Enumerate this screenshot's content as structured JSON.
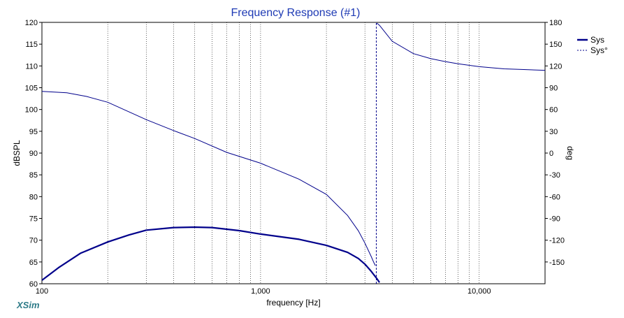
{
  "chart_data": {
    "type": "line",
    "title": "Frequency Response (#1)",
    "xlabel": "frequency [Hz]",
    "ylabel_left": "dBSPL",
    "ylabel_right": "deg",
    "x_scale": "log",
    "xlim": [
      100,
      20000
    ],
    "ylim_left": [
      60,
      120
    ],
    "ylim_right": [
      -180,
      180
    ],
    "x_tick_labels": [
      {
        "value": 100,
        "label": "100"
      },
      {
        "value": 1000,
        "label": "1,000"
      },
      {
        "value": 10000,
        "label": "10,000"
      }
    ],
    "y_left_ticks": [
      60,
      65,
      70,
      75,
      80,
      85,
      90,
      95,
      100,
      105,
      110,
      115,
      120
    ],
    "y_right_ticks": [
      -150,
      -120,
      -90,
      -60,
      -30,
      0,
      30,
      60,
      90,
      120,
      150,
      180
    ],
    "grid": true,
    "legend_position": "top-right",
    "watermark": "XSim",
    "series": [
      {
        "name": "Sys",
        "axis": "left",
        "style": "solid-bold",
        "color": "#00008B",
        "x": [
          100,
          120,
          150,
          200,
          250,
          300,
          400,
          500,
          600,
          800,
          1000,
          1500,
          2000,
          2500,
          2800,
          3000,
          3200,
          3400,
          3500
        ],
        "y": [
          60.8,
          63.8,
          67.0,
          69.6,
          71.2,
          72.3,
          72.9,
          73.0,
          72.9,
          72.2,
          71.4,
          70.2,
          68.8,
          67.2,
          65.8,
          64.5,
          62.9,
          61.2,
          60.3
        ]
      },
      {
        "name": "Sys°",
        "axis": "right",
        "style": "thin",
        "color": "#00008B",
        "x": [
          100,
          130,
          160,
          200,
          300,
          400,
          500,
          700,
          1000,
          1500,
          2000,
          2500,
          2800,
          3000,
          3200,
          3300,
          3350,
          3400,
          3500,
          4000,
          5000,
          6000,
          7000,
          8000,
          10000,
          13000,
          16000,
          20000
        ],
        "y": [
          85,
          83,
          78,
          70,
          46,
          31,
          20,
          1,
          -14,
          -36,
          -57,
          -86,
          -107,
          -124,
          -142,
          -151,
          -155,
          179,
          176,
          154,
          137,
          130,
          126,
          123,
          119,
          116,
          115,
          114
        ]
      }
    ]
  }
}
